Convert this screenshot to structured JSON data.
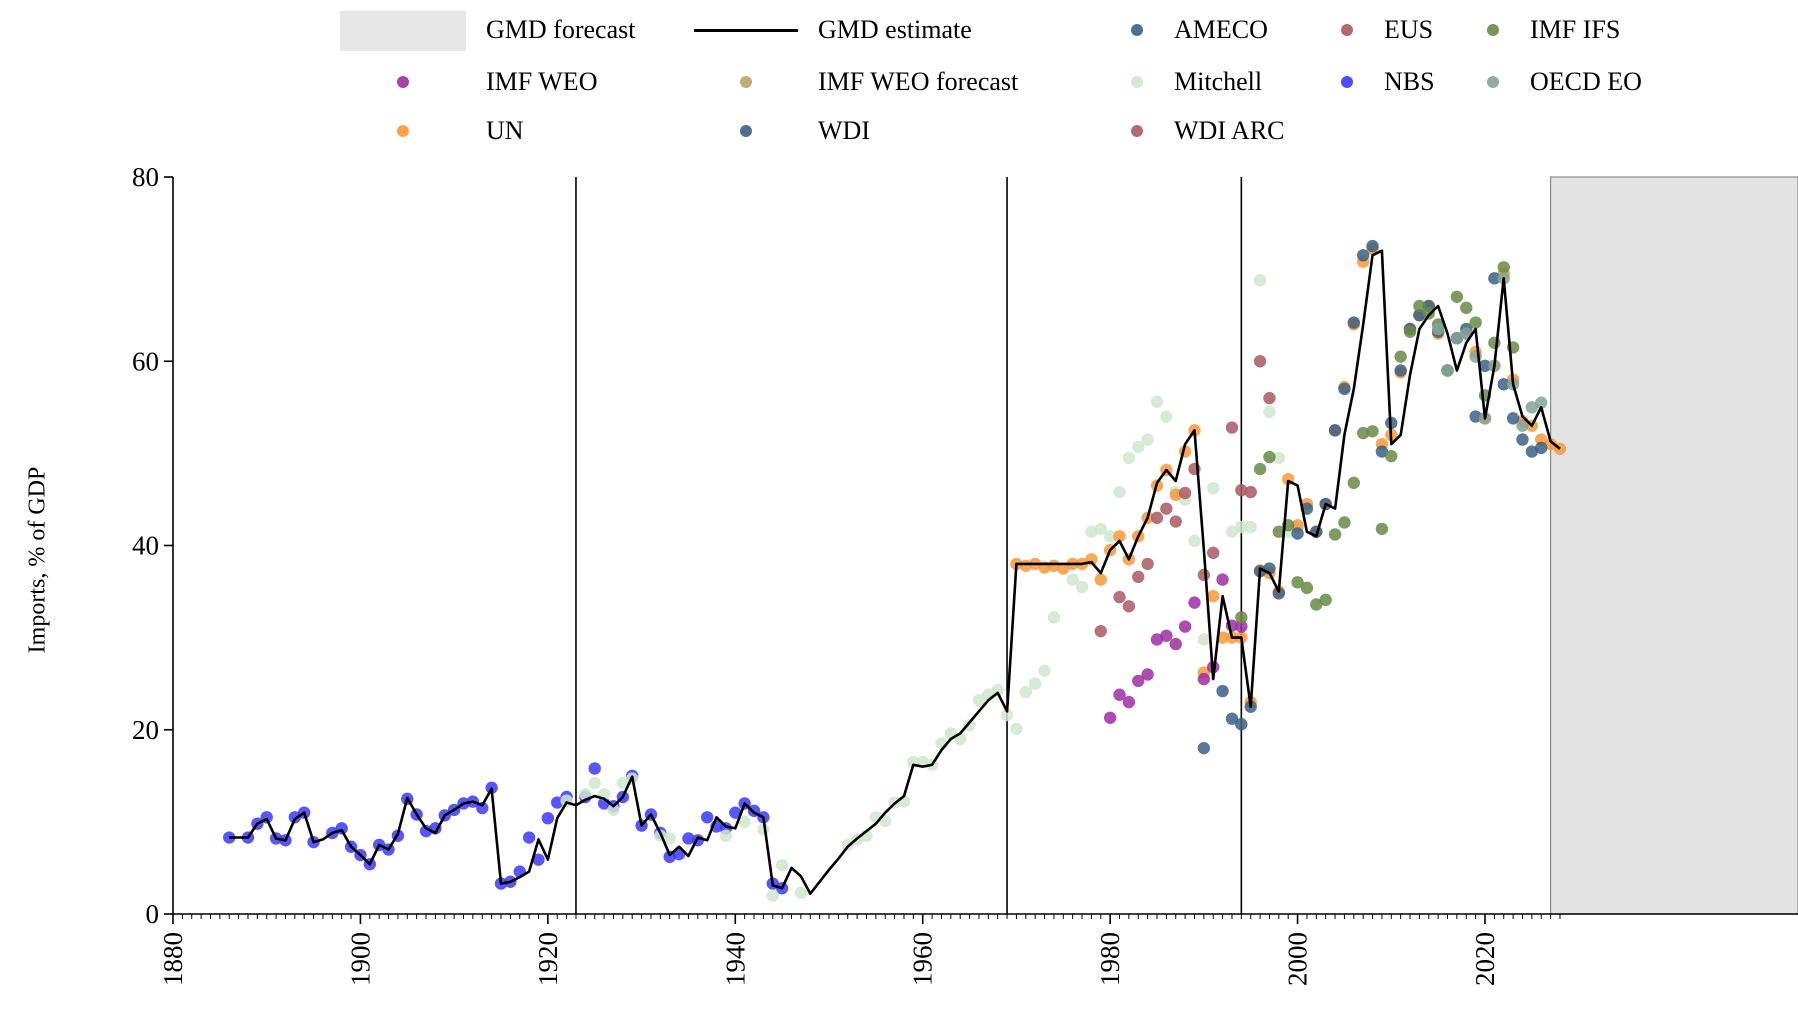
{
  "chart_data": {
    "type": "scatter",
    "xlabel": "",
    "ylabel": "Imports, % of GDP",
    "xlim": [
      1880,
      2028
    ],
    "ylim": [
      0,
      80
    ],
    "x_ticks": [
      "1880",
      "1900",
      "1920",
      "1940",
      "1960",
      "1980",
      "2000",
      "2020"
    ],
    "y_ticks": [
      "0",
      "20",
      "40",
      "60",
      "80"
    ],
    "legend_position": "top",
    "vertical_lines": [
      1923,
      1969,
      1994
    ],
    "forecast_start": 2027,
    "legend": [
      {
        "key": "gmd_forecast",
        "label": "GMD forecast",
        "kind": "band",
        "color": "#e6e6e6"
      },
      {
        "key": "gmd_estimate",
        "label": "GMD estimate",
        "kind": "line",
        "color": "#000000"
      },
      {
        "key": "ameco",
        "label": "AMECO",
        "kind": "dot",
        "color": "#3b6084"
      },
      {
        "key": "eus",
        "label": "EUS",
        "kind": "dot",
        "color": "#a75a63"
      },
      {
        "key": "imf_ifs",
        "label": "IMF IFS",
        "kind": "dot",
        "color": "#6a8a45"
      },
      {
        "key": "imf_weo",
        "label": "IMF WEO",
        "kind": "dot",
        "color": "#9b2fa2"
      },
      {
        "key": "imf_weo_forecast",
        "label": "IMF WEO forecast",
        "kind": "dot",
        "color": "#b9a26f"
      },
      {
        "key": "mitchell",
        "label": "Mitchell",
        "kind": "dot",
        "color": "#cfe6cf"
      },
      {
        "key": "nbs",
        "label": "NBS",
        "kind": "dot",
        "color": "#3a3af5"
      },
      {
        "key": "oecd_eo",
        "label": "OECD EO",
        "kind": "dot",
        "color": "#85a39a"
      },
      {
        "key": "un",
        "label": "UN",
        "kind": "dot",
        "color": "#f6993b"
      },
      {
        "key": "wdi",
        "label": "WDI",
        "kind": "dot",
        "color": "#3b6084"
      },
      {
        "key": "wdi_arc",
        "label": "WDI ARC",
        "kind": "dot",
        "color": "#a75a63"
      }
    ],
    "series": [
      {
        "name": "GMD estimate",
        "type": "line",
        "color": "#000000",
        "x": [
          1886,
          1887,
          1888,
          1889,
          1890,
          1891,
          1892,
          1893,
          1894,
          1895,
          1896,
          1897,
          1898,
          1899,
          1900,
          1901,
          1902,
          1903,
          1904,
          1905,
          1906,
          1907,
          1908,
          1909,
          1910,
          1911,
          1912,
          1913,
          1914,
          1915,
          1916,
          1917,
          1918,
          1919,
          1920,
          1921,
          1922,
          1923,
          1924,
          1925,
          1926,
          1927,
          1928,
          1929,
          1930,
          1931,
          1932,
          1933,
          1934,
          1935,
          1936,
          1937,
          1938,
          1939,
          1940,
          1941,
          1942,
          1943,
          1944,
          1945,
          1946,
          1947,
          1948,
          1949,
          1950,
          1951,
          1952,
          1953,
          1954,
          1955,
          1956,
          1957,
          1958,
          1959,
          1960,
          1961,
          1962,
          1963,
          1964,
          1965,
          1966,
          1967,
          1968,
          1969,
          1970,
          1971,
          1972,
          1973,
          1974,
          1975,
          1976,
          1977,
          1978,
          1979,
          1980,
          1981,
          1982,
          1983,
          1984,
          1985,
          1986,
          1987,
          1988,
          1989,
          1990,
          1991,
          1992,
          1993,
          1994,
          1995,
          1996,
          1997,
          1998,
          1999,
          2000,
          2001,
          2002,
          2003,
          2004,
          2005,
          2006,
          2007,
          2008,
          2009,
          2010,
          2011,
          2012,
          2013,
          2014,
          2015,
          2016,
          2017,
          2018,
          2019,
          2020,
          2021,
          2022,
          2023,
          2024,
          2025,
          2026,
          2027,
          2028
        ],
        "y": [
          8.3,
          8.3,
          8.3,
          9.8,
          10.3,
          8.2,
          8.0,
          10.3,
          11.0,
          7.8,
          8.1,
          8.8,
          9.1,
          7.3,
          6.4,
          5.4,
          7.5,
          7.0,
          8.7,
          12.6,
          10.8,
          9.3,
          8.8,
          10.7,
          11.3,
          12.0,
          12.2,
          11.8,
          13.6,
          3.3,
          3.5,
          4.0,
          4.6,
          8.1,
          5.9,
          10.4,
          12.1,
          11.8,
          12.4,
          12.8,
          12.5,
          11.7,
          12.7,
          14.9,
          9.6,
          10.8,
          8.8,
          6.4,
          7.3,
          6.3,
          8.3,
          8.0,
          10.5,
          9.5,
          9.3,
          12.0,
          11.0,
          10.5,
          3.1,
          2.8,
          5.0,
          4.1,
          2.2,
          3.5,
          4.8,
          6.0,
          7.3,
          8.2,
          9.0,
          9.8,
          11.0,
          12.0,
          12.8,
          16.2,
          16.0,
          16.2,
          17.8,
          19.0,
          19.6,
          20.8,
          22.0,
          23.2,
          24.0,
          22.0,
          38.0,
          38.0,
          38.0,
          38.0,
          38.0,
          38.0,
          38.0,
          38.0,
          38.2,
          37.0,
          39.5,
          40.5,
          38.5,
          41.0,
          43.0,
          46.8,
          48.2,
          47.0,
          51.0,
          52.5,
          39.5,
          25.5,
          34.5,
          30.0,
          30.0,
          22.5,
          37.5,
          37.0,
          35.0,
          47.0,
          46.5,
          41.5,
          41.0,
          44.5,
          44.0,
          52.0,
          57.0,
          64.0,
          71.5,
          72.0,
          51.0,
          52.0,
          58.5,
          63.5,
          65.0,
          66.0,
          63.0,
          59.0,
          62.0,
          63.5,
          53.8,
          59.5,
          69.0,
          57.5,
          54.0,
          53.0,
          55.0,
          51.3,
          50.5
        ]
      },
      {
        "name": "NBS",
        "color": "#3a3af5",
        "x": [
          1886,
          1888,
          1889,
          1890,
          1891,
          1892,
          1893,
          1894,
          1895,
          1897,
          1898,
          1899,
          1900,
          1901,
          1902,
          1903,
          1904,
          1905,
          1906,
          1907,
          1908,
          1909,
          1910,
          1911,
          1912,
          1913,
          1914,
          1915,
          1916,
          1917,
          1918,
          1919,
          1920,
          1921,
          1922,
          1924,
          1925,
          1926,
          1927,
          1928,
          1929,
          1930,
          1931,
          1932,
          1933,
          1934,
          1935,
          1936,
          1937,
          1938,
          1939,
          1940,
          1941,
          1942,
          1943,
          1944,
          1945
        ],
        "y": [
          8.3,
          8.3,
          9.8,
          10.5,
          8.2,
          8.0,
          10.5,
          11.0,
          7.8,
          8.8,
          9.3,
          7.3,
          6.4,
          5.4,
          7.5,
          7.0,
          8.5,
          12.5,
          10.8,
          9.0,
          9.3,
          10.7,
          11.3,
          12.0,
          12.2,
          11.5,
          13.7,
          3.3,
          3.5,
          4.6,
          8.3,
          5.9,
          10.4,
          12.1,
          12.7,
          12.7,
          15.8,
          12.0,
          11.7,
          12.7,
          15.0,
          9.6,
          10.8,
          8.8,
          6.2,
          6.5,
          8.2,
          8.0,
          10.5,
          9.5,
          9.3,
          11.0,
          12.0,
          11.2,
          10.5,
          3.3,
          2.8
        ]
      },
      {
        "name": "Mitchell",
        "color": "#cfe6cf",
        "x": [
          1922,
          1924,
          1925,
          1926,
          1927,
          1928,
          1929,
          1932,
          1933,
          1939,
          1941,
          1943,
          1944,
          1945,
          1947,
          1952,
          1953,
          1954,
          1955,
          1956,
          1957,
          1958,
          1959,
          1960,
          1961,
          1962,
          1963,
          1964,
          1965,
          1966,
          1967,
          1968,
          1969,
          1970,
          1971,
          1972,
          1973,
          1974,
          1976,
          1977,
          1978,
          1979,
          1980,
          1981,
          1982,
          1983,
          1984,
          1985,
          1986,
          1987,
          1988,
          1989,
          1990,
          1991,
          1993,
          1994,
          1995,
          1996,
          1997,
          1998,
          1999,
          2000
        ],
        "y": [
          12.3,
          13.0,
          14.2,
          13.0,
          11.3,
          14.2,
          14.7,
          8.5,
          8.2,
          8.5,
          10.0,
          9.2,
          2.0,
          5.3,
          2.3,
          7.5,
          8.1,
          8.5,
          10.5,
          10.1,
          12.1,
          12.2,
          16.5,
          16.5,
          16.2,
          18.5,
          19.6,
          19.0,
          20.5,
          23.2,
          23.8,
          24.3,
          21.6,
          20.1,
          24.1,
          25.0,
          26.4,
          32.2,
          36.3,
          35.5,
          41.5,
          41.8,
          41.0,
          45.8,
          49.5,
          50.7,
          51.5,
          55.6,
          54.0,
          45.8,
          45.0,
          40.5,
          29.8,
          46.2,
          41.5,
          42.0,
          42.0,
          68.8,
          54.5,
          49.5,
          41.5,
          42.0
        ]
      },
      {
        "name": "UN",
        "color": "#f6993b",
        "x": [
          1970,
          1971,
          1972,
          1973,
          1974,
          1975,
          1976,
          1977,
          1978,
          1979,
          1980,
          1981,
          1982,
          1983,
          1984,
          1985,
          1986,
          1987,
          1988,
          1989,
          1990,
          1991,
          1992,
          1993,
          1994,
          1995,
          1996,
          1997,
          1998,
          1999,
          2000,
          2001,
          2002,
          2003,
          2004,
          2005,
          2006,
          2007,
          2008,
          2009,
          2010,
          2011,
          2012,
          2013,
          2014,
          2015,
          2016,
          2017,
          2018,
          2019,
          2020,
          2021,
          2022,
          2023,
          2024,
          2025,
          2026,
          2027,
          2028
        ],
        "y": [
          38.0,
          37.8,
          38.0,
          37.6,
          37.8,
          37.5,
          38.0,
          38.0,
          38.5,
          36.3,
          39.5,
          41.0,
          38.5,
          41.0,
          43.0,
          46.5,
          48.2,
          45.5,
          50.2,
          52.5,
          26.2,
          34.5,
          30.0,
          30.0,
          30.0,
          23.0,
          37.3,
          37.0,
          35.0,
          47.2,
          42.2,
          44.5,
          41.5,
          44.5,
          52.5,
          57.2,
          64.0,
          70.8,
          72.2,
          51.0,
          52.0,
          58.8,
          63.5,
          65.0,
          66.0,
          63.0,
          59.0,
          62.5,
          63.0,
          61.0,
          53.8,
          59.5,
          69.5,
          58.0,
          53.5,
          53.0,
          51.5,
          51.0,
          50.5
        ]
      },
      {
        "name": "IMF WEO",
        "color": "#9b2fa2",
        "x": [
          1980,
          1981,
          1982,
          1983,
          1984,
          1985,
          1986,
          1987,
          1988,
          1989,
          1990,
          1991,
          1992,
          1993,
          1994
        ],
        "y": [
          21.3,
          23.8,
          23.0,
          25.3,
          26.0,
          29.8,
          30.2,
          29.3,
          31.2,
          33.8,
          25.5,
          26.8,
          36.3,
          31.3,
          31.2
        ]
      },
      {
        "name": "WDI ARC",
        "color": "#a75a63",
        "x": [
          1979,
          1981,
          1982,
          1983,
          1984,
          1985,
          1986,
          1987,
          1988,
          1989,
          1990,
          1991,
          1993,
          1994,
          1995,
          1996,
          1997
        ],
        "y": [
          30.7,
          34.4,
          33.4,
          36.6,
          38.0,
          43.0,
          44.0,
          42.6,
          45.7,
          48.3,
          36.8,
          39.2,
          52.8,
          46.0,
          45.8,
          60.0,
          56.0
        ]
      },
      {
        "name": "AMECO",
        "color": "#3b6084",
        "x": [
          1990,
          1992,
          1993,
          1994,
          1995,
          1996,
          1997,
          1998,
          2000,
          2001,
          2002,
          2003,
          2004,
          2005,
          2006,
          2007,
          2008,
          2009,
          2010,
          2011,
          2012,
          2013,
          2014,
          2015,
          2016,
          2017,
          2018,
          2019,
          2020,
          2021,
          2022,
          2023,
          2024,
          2025,
          2026
        ],
        "y": [
          18.0,
          24.2,
          21.2,
          20.6,
          22.5,
          37.2,
          37.5,
          34.8,
          41.3,
          44.0,
          41.5,
          44.5,
          52.5,
          57.0,
          64.2,
          71.5,
          72.5,
          50.2,
          53.3,
          59.0,
          63.5,
          65.0,
          66.0,
          63.2,
          59.0,
          62.5,
          63.5,
          54.0,
          59.5,
          69.0,
          57.5,
          53.8,
          51.5,
          50.2,
          50.6
        ]
      },
      {
        "name": "IMF IFS",
        "color": "#6a8a45",
        "x": [
          1994,
          1996,
          1997,
          1998,
          1999,
          2000,
          2001,
          2002,
          2003,
          2004,
          2005,
          2006,
          2007,
          2008,
          2009,
          2010,
          2011,
          2012,
          2013,
          2014,
          2015,
          2016,
          2017,
          2018,
          2019,
          2020,
          2021,
          2022,
          2023
        ],
        "y": [
          32.2,
          48.3,
          49.6,
          41.5,
          42.2,
          36.0,
          35.4,
          33.6,
          34.1,
          41.2,
          42.5,
          46.8,
          52.2,
          52.4,
          41.8,
          49.7,
          60.5,
          63.2,
          66.0,
          65.2,
          64.0,
          59.0,
          67.0,
          65.8,
          64.2,
          56.3,
          62.0,
          70.2,
          61.5
        ]
      },
      {
        "name": "OECD EO",
        "color": "#85a39a",
        "x": [
          2015,
          2016,
          2017,
          2018,
          2019,
          2020,
          2021,
          2022,
          2023,
          2024,
          2025,
          2026
        ],
        "y": [
          63.5,
          59.0,
          62.5,
          63.0,
          60.5,
          53.8,
          59.5,
          69.0,
          57.5,
          53.0,
          55.0,
          55.5
        ]
      }
    ]
  }
}
